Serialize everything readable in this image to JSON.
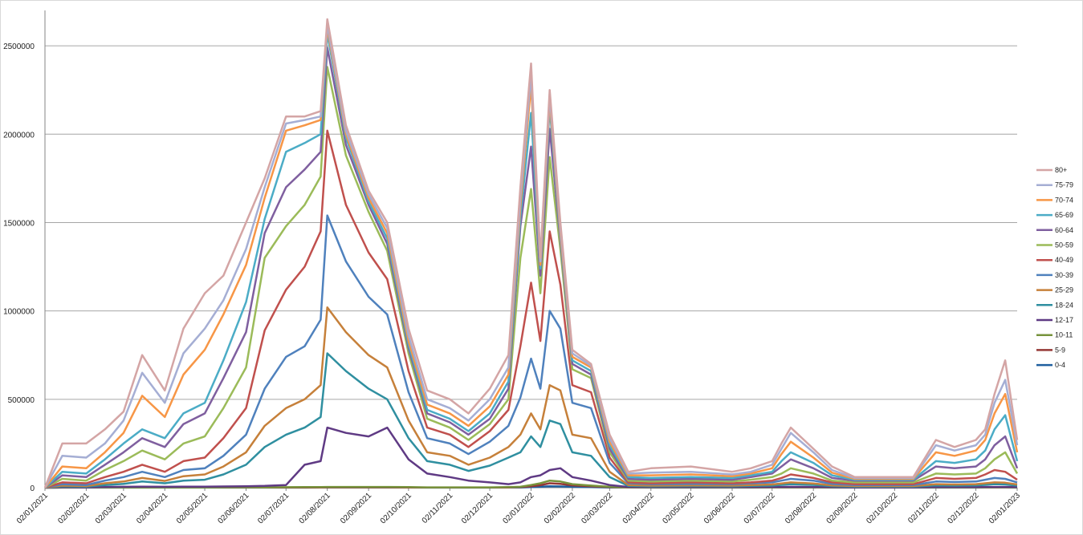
{
  "chart_data": {
    "type": "line",
    "title": "",
    "xlabel": "",
    "ylabel": "",
    "ylim": [
      0,
      2500000
    ],
    "yticks": [
      0,
      500000,
      1000000,
      1500000,
      2000000,
      2500000
    ],
    "ytick_labels": [
      "0",
      "500000",
      "1000000",
      "1500000",
      "2000000",
      "2500000"
    ],
    "grid": "horizontal",
    "legend_position": "right",
    "x_ticks": [
      "02/01/2021",
      "02/02/2021",
      "02/03/2021",
      "02/04/2021",
      "02/05/2021",
      "02/06/2021",
      "02/07/2021",
      "02/08/2021",
      "02/09/2021",
      "02/10/2021",
      "02/11/2021",
      "02/12/2021",
      "02/01/2022",
      "02/02/2022",
      "02/03/2022",
      "02/04/2022",
      "02/05/2022",
      "02/06/2022",
      "02/07/2022",
      "02/08/2022",
      "02/09/2022",
      "02/10/2022",
      "02/11/2022",
      "02/12/2022",
      "02/01/2023"
    ],
    "x": [
      "02/01/2021",
      "15/01/2021",
      "02/02/2021",
      "16/02/2021",
      "02/03/2021",
      "16/03/2021",
      "02/04/2021",
      "16/04/2021",
      "02/05/2021",
      "16/05/2021",
      "02/06/2021",
      "16/06/2021",
      "02/07/2021",
      "16/07/2021",
      "28/07/2021",
      "02/08/2021",
      "16/08/2021",
      "02/09/2021",
      "16/09/2021",
      "02/10/2021",
      "16/10/2021",
      "02/11/2021",
      "16/11/2021",
      "02/12/2021",
      "16/12/2021",
      "25/12/2021",
      "02/01/2022",
      "09/01/2022",
      "16/01/2022",
      "24/01/2022",
      "02/02/2022",
      "16/02/2022",
      "02/03/2022",
      "16/03/2022",
      "02/04/2022",
      "02/05/2022",
      "02/06/2022",
      "16/06/2022",
      "02/07/2022",
      "09/07/2022",
      "16/07/2022",
      "02/08/2022",
      "16/08/2022",
      "02/09/2022",
      "02/10/2022",
      "16/10/2022",
      "02/11/2022",
      "16/11/2022",
      "02/12/2022",
      "09/12/2022",
      "16/12/2022",
      "24/12/2022",
      "02/01/2023"
    ],
    "series": [
      {
        "name": "80+",
        "color": "#d4a5a5",
        "values": [
          0,
          250000,
          250000,
          330000,
          430000,
          750000,
          550000,
          900000,
          1100000,
          1200000,
          1500000,
          1750000,
          2100000,
          2100000,
          2130000,
          2650000,
          2050000,
          1680000,
          1500000,
          900000,
          550000,
          500000,
          420000,
          560000,
          750000,
          1700000,
          2400000,
          1300000,
          2250000,
          1500000,
          780000,
          700000,
          300000,
          90000,
          110000,
          120000,
          90000,
          110000,
          150000,
          250000,
          340000,
          220000,
          120000,
          60000,
          60000,
          60000,
          270000,
          230000,
          270000,
          330000,
          530000,
          720000,
          270000
        ]
      },
      {
        "name": "75-79",
        "color": "#a5aed4",
        "values": [
          0,
          180000,
          170000,
          250000,
          380000,
          650000,
          480000,
          760000,
          900000,
          1060000,
          1350000,
          1700000,
          2060000,
          2080000,
          2100000,
          2620000,
          2020000,
          1660000,
          1470000,
          860000,
          500000,
          450000,
          380000,
          500000,
          680000,
          1640000,
          2340000,
          1280000,
          2220000,
          1470000,
          760000,
          690000,
          280000,
          80000,
          85000,
          90000,
          75000,
          90000,
          130000,
          220000,
          310000,
          200000,
          100000,
          55000,
          55000,
          55000,
          240000,
          210000,
          240000,
          300000,
          480000,
          610000,
          240000
        ]
      },
      {
        "name": "70-74",
        "color": "#f79646",
        "values": [
          0,
          120000,
          110000,
          200000,
          310000,
          520000,
          400000,
          640000,
          780000,
          980000,
          1260000,
          1640000,
          2020000,
          2050000,
          2080000,
          2600000,
          2000000,
          1640000,
          1440000,
          830000,
          470000,
          420000,
          350000,
          460000,
          640000,
          1590000,
          2280000,
          1260000,
          2190000,
          1440000,
          740000,
          680000,
          260000,
          70000,
          70000,
          75000,
          65000,
          80000,
          110000,
          190000,
          260000,
          170000,
          85000,
          50000,
          50000,
          50000,
          200000,
          180000,
          210000,
          270000,
          420000,
          530000,
          200000
        ]
      },
      {
        "name": "65-69",
        "color": "#4bacc6",
        "values": [
          0,
          90000,
          80000,
          160000,
          250000,
          330000,
          280000,
          420000,
          480000,
          720000,
          1050000,
          1520000,
          1900000,
          1950000,
          2000000,
          2570000,
          1980000,
          1620000,
          1410000,
          810000,
          440000,
          390000,
          320000,
          420000,
          600000,
          1530000,
          2120000,
          1240000,
          2150000,
          1420000,
          720000,
          660000,
          240000,
          60000,
          55000,
          60000,
          55000,
          70000,
          90000,
          150000,
          200000,
          140000,
          70000,
          45000,
          45000,
          45000,
          150000,
          140000,
          160000,
          210000,
          330000,
          410000,
          150000
        ]
      },
      {
        "name": "60-64",
        "color": "#7f5f9f",
        "values": [
          0,
          70000,
          60000,
          130000,
          200000,
          280000,
          230000,
          360000,
          420000,
          620000,
          880000,
          1440000,
          1700000,
          1800000,
          1900000,
          2490000,
          1940000,
          1600000,
          1380000,
          790000,
          420000,
          370000,
          300000,
          390000,
          560000,
          1480000,
          1930000,
          1200000,
          2030000,
          1400000,
          700000,
          640000,
          220000,
          50000,
          45000,
          50000,
          45000,
          60000,
          80000,
          120000,
          160000,
          110000,
          55000,
          40000,
          40000,
          40000,
          120000,
          110000,
          120000,
          160000,
          240000,
          290000,
          110000
        ]
      },
      {
        "name": "50-59",
        "color": "#9bbb59",
        "values": [
          0,
          50000,
          40000,
          100000,
          150000,
          210000,
          160000,
          250000,
          290000,
          450000,
          680000,
          1300000,
          1480000,
          1600000,
          1760000,
          2380000,
          1880000,
          1560000,
          1340000,
          760000,
          390000,
          340000,
          270000,
          360000,
          500000,
          1300000,
          1690000,
          1100000,
          1870000,
          1350000,
          670000,
          620000,
          200000,
          40000,
          35000,
          40000,
          35000,
          45000,
          60000,
          80000,
          110000,
          80000,
          40000,
          30000,
          30000,
          30000,
          80000,
          75000,
          80000,
          110000,
          160000,
          200000,
          80000
        ]
      },
      {
        "name": "40-49",
        "color": "#c0504d",
        "values": [
          0,
          30000,
          25000,
          60000,
          90000,
          130000,
          90000,
          150000,
          170000,
          280000,
          450000,
          890000,
          1120000,
          1250000,
          1450000,
          2020000,
          1600000,
          1330000,
          1180000,
          660000,
          340000,
          300000,
          230000,
          320000,
          440000,
          800000,
          1160000,
          830000,
          1450000,
          1150000,
          580000,
          540000,
          170000,
          30000,
          25000,
          30000,
          25000,
          30000,
          40000,
          55000,
          75000,
          55000,
          30000,
          20000,
          20000,
          20000,
          55000,
          50000,
          55000,
          75000,
          100000,
          90000,
          45000
        ]
      },
      {
        "name": "30-39",
        "color": "#4f81bd",
        "values": [
          0,
          20000,
          15000,
          40000,
          60000,
          90000,
          60000,
          100000,
          110000,
          180000,
          300000,
          560000,
          740000,
          800000,
          950000,
          1540000,
          1280000,
          1080000,
          980000,
          540000,
          280000,
          250000,
          190000,
          260000,
          350000,
          510000,
          730000,
          560000,
          1000000,
          900000,
          480000,
          450000,
          140000,
          25000,
          20000,
          22000,
          20000,
          25000,
          30000,
          40000,
          50000,
          40000,
          22000,
          15000,
          15000,
          15000,
          35000,
          32000,
          35000,
          45000,
          55000,
          50000,
          30000
        ]
      },
      {
        "name": "25-29",
        "color": "#c6803a",
        "values": [
          0,
          12000,
          9000,
          25000,
          35000,
          55000,
          38000,
          65000,
          75000,
          120000,
          200000,
          350000,
          450000,
          500000,
          580000,
          1020000,
          880000,
          750000,
          680000,
          380000,
          200000,
          180000,
          130000,
          170000,
          230000,
          300000,
          420000,
          330000,
          580000,
          550000,
          300000,
          280000,
          90000,
          15000,
          12000,
          13000,
          12000,
          15000,
          18000,
          24000,
          30000,
          24000,
          13000,
          9000,
          9000,
          9000,
          20000,
          18000,
          20000,
          25000,
          30000,
          28000,
          18000
        ]
      },
      {
        "name": "18-24",
        "color": "#2f8fa0",
        "values": [
          0,
          8000,
          6000,
          15000,
          22000,
          35000,
          25000,
          40000,
          45000,
          75000,
          130000,
          230000,
          300000,
          340000,
          400000,
          760000,
          660000,
          560000,
          500000,
          280000,
          150000,
          130000,
          95000,
          125000,
          170000,
          200000,
          290000,
          230000,
          380000,
          360000,
          200000,
          180000,
          60000,
          10000,
          8000,
          9000,
          8000,
          10000,
          12000,
          16000,
          20000,
          16000,
          9000,
          6000,
          6000,
          6000,
          13000,
          12000,
          13000,
          16000,
          20000,
          18000,
          12000
        ]
      },
      {
        "name": "12-17",
        "color": "#5f3a84",
        "values": [
          0,
          3000,
          2000,
          4000,
          5000,
          6000,
          5000,
          6000,
          6000,
          7000,
          8000,
          10000,
          15000,
          130000,
          150000,
          340000,
          310000,
          290000,
          340000,
          160000,
          80000,
          60000,
          40000,
          30000,
          20000,
          30000,
          60000,
          70000,
          100000,
          110000,
          60000,
          40000,
          15000,
          4000,
          3000,
          3000,
          3000,
          3000,
          4000,
          4000,
          5000,
          4000,
          3000,
          2000,
          2000,
          2000,
          3000,
          3000,
          3000,
          4000,
          4000,
          4000,
          3000
        ]
      },
      {
        "name": "10-11",
        "color": "#77933c",
        "values": [
          0,
          1000,
          1000,
          1000,
          1000,
          1500,
          1000,
          1500,
          1500,
          2000,
          2000,
          2000,
          2500,
          3000,
          3000,
          4000,
          4000,
          4000,
          4000,
          3000,
          2000,
          2000,
          2000,
          2000,
          3000,
          5000,
          15000,
          25000,
          40000,
          35000,
          20000,
          12000,
          5000,
          2000,
          1500,
          1500,
          1500,
          1500,
          2000,
          2000,
          2500,
          2000,
          1500,
          1000,
          1000,
          1000,
          1500,
          1500,
          1500,
          2000,
          2000,
          2000,
          1500
        ]
      },
      {
        "name": "5-9",
        "color": "#953735",
        "values": [
          0,
          1000,
          1000,
          1000,
          1000,
          1000,
          1000,
          1000,
          1000,
          1000,
          1000,
          1000,
          1000,
          1500,
          1500,
          2000,
          2000,
          2000,
          2000,
          1500,
          1000,
          1000,
          1000,
          1000,
          1500,
          3000,
          8000,
          14000,
          25000,
          22000,
          13000,
          8000,
          3000,
          1500,
          1000,
          1000,
          1000,
          1000,
          1500,
          1500,
          2000,
          1500,
          1000,
          1000,
          1000,
          1000,
          1000,
          1000,
          1000,
          1500,
          1500,
          1500,
          1000
        ]
      },
      {
        "name": "0-4",
        "color": "#1f5f9f",
        "values": [
          0,
          500,
          500,
          500,
          500,
          500,
          500,
          500,
          500,
          500,
          500,
          500,
          500,
          500,
          800,
          1000,
          1000,
          1000,
          1000,
          800,
          500,
          500,
          500,
          500,
          800,
          1500,
          3000,
          5000,
          8000,
          7000,
          5000,
          3000,
          1500,
          800,
          500,
          500,
          500,
          500,
          800,
          800,
          1000,
          800,
          500,
          500,
          500,
          500,
          500,
          500,
          500,
          800,
          800,
          800,
          500
        ]
      }
    ]
  }
}
